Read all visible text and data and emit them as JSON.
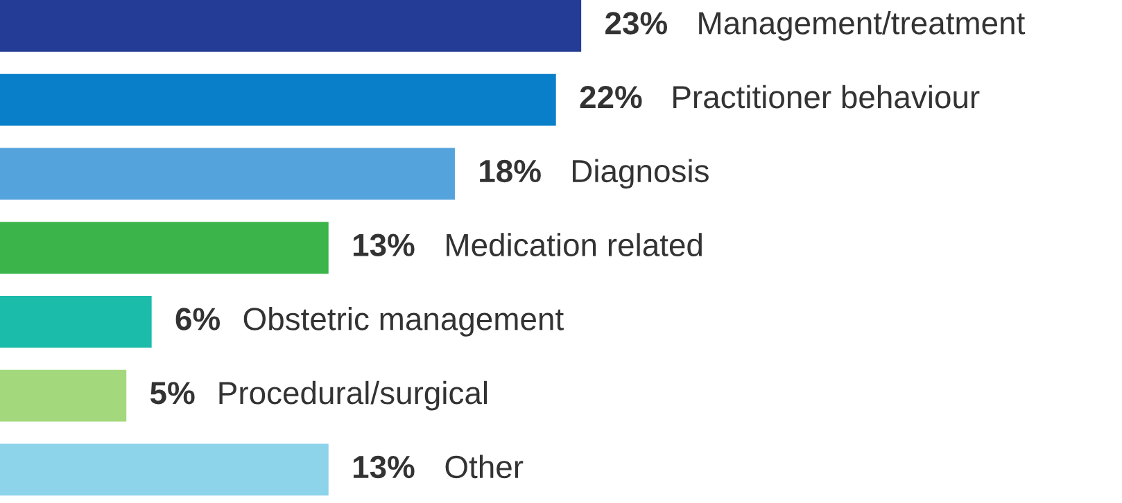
{
  "chart_data": {
    "type": "bar",
    "orientation": "horizontal",
    "categories": [
      "Management/treatment",
      "Practitioner behaviour",
      "Diagnosis",
      "Medication related",
      "Obstetric management",
      "Procedural/surgical",
      "Other"
    ],
    "values": [
      23,
      22,
      18,
      13,
      6,
      5,
      13
    ],
    "colors": [
      "#253c96",
      "#0a7fc9",
      "#55a3dc",
      "#3bb44a",
      "#1bbcaa",
      "#a3d97c",
      "#8dd3ea"
    ],
    "value_labels": [
      "23%",
      "22%",
      "18%",
      "13%",
      "6%",
      "5%",
      "13%"
    ],
    "xlim": [
      0,
      44.4
    ]
  }
}
